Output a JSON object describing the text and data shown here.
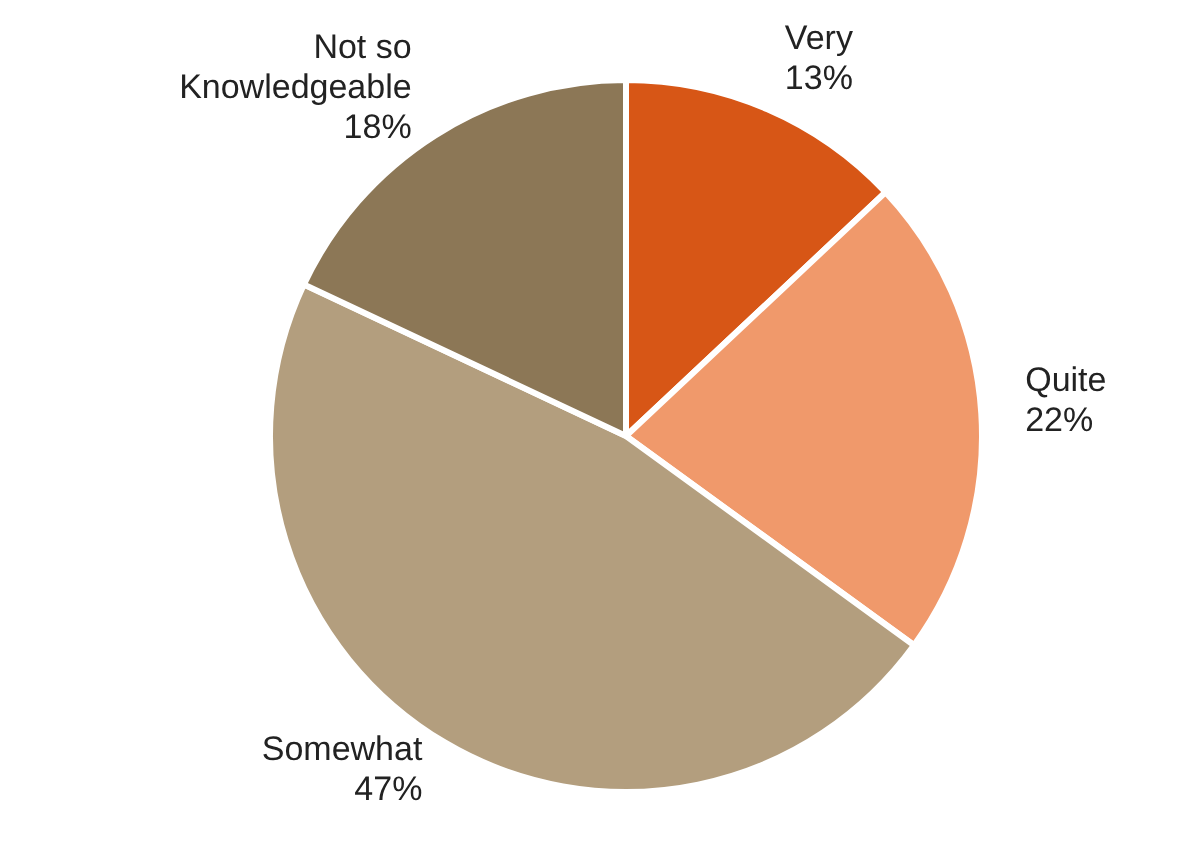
{
  "chart_data": {
    "type": "pie",
    "categories": [
      "Very",
      "Quite",
      "Somewhat",
      "Not so Knowledgeable"
    ],
    "values": [
      13,
      22,
      47,
      18
    ],
    "colors": [
      "#d75616",
      "#f0996b",
      "#b39e7e",
      "#8c7756"
    ],
    "value_labels": [
      "13%",
      "22%",
      "47%",
      "18%"
    ]
  }
}
